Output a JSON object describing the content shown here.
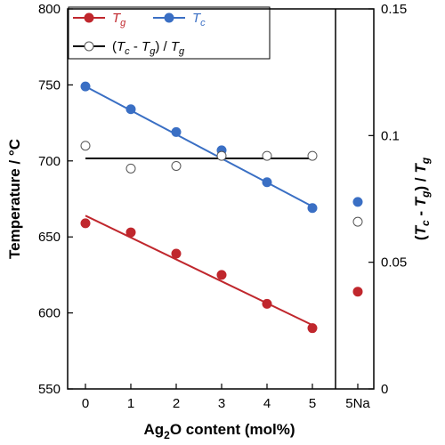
{
  "chart_data": {
    "type": "scatter",
    "x_categories": [
      "0",
      "1",
      "2",
      "3",
      "4",
      "5",
      "5Na"
    ],
    "xlabel": {
      "main": "Ag",
      "sub": "2",
      "rest": "O content (mol%)"
    },
    "ylabel_left": "Temperature / °C",
    "ylabel_right": "(T c - T g) / T g",
    "ylabel_right_parts": {
      "open": "(",
      "t1": "T",
      "s1": "c",
      "minus": " - ",
      "t2": "T",
      "s2": "g",
      "mid": ") / ",
      "t3": "T",
      "s3": "g"
    },
    "ylim_left": [
      550,
      800
    ],
    "yticks_left": [
      "550",
      "600",
      "650",
      "700",
      "750",
      "800"
    ],
    "ylim_right": [
      0,
      0.15
    ],
    "yticks_right": [
      "0",
      "0.05",
      "0.1",
      "0.15"
    ],
    "legend": [
      {
        "symbol": "T",
        "sub": "g",
        "color": "#c0272d",
        "marker": "filled"
      },
      {
        "symbol": "T",
        "sub": "c",
        "color": "#3a6fc4",
        "marker": "filled"
      },
      {
        "label_parts": [
          "(",
          "T",
          "c",
          " - ",
          "T",
          "g",
          ") / ",
          "T",
          "g"
        ],
        "color": "#000000",
        "marker": "open"
      }
    ],
    "series": [
      {
        "name": "Tg",
        "axis": "left",
        "color": "#c0272d",
        "x": [
          0,
          1,
          2,
          3,
          4,
          5
        ],
        "y": [
          659,
          653,
          639,
          625,
          606,
          590
        ],
        "fit": {
          "x": [
            0,
            5
          ],
          "y": [
            664,
            592
          ]
        }
      },
      {
        "name": "Tc",
        "axis": "left",
        "color": "#3a6fc4",
        "x": [
          0,
          1,
          2,
          3,
          4,
          5
        ],
        "y": [
          749,
          734,
          719,
          707,
          686,
          669
        ],
        "fit": {
          "x": [
            0,
            5
          ],
          "y": [
            749,
            670
          ]
        }
      },
      {
        "name": "(Tc - Tg) / Tg",
        "axis": "right",
        "color": "#000000",
        "marker": "open",
        "x": [
          0,
          1,
          2,
          3,
          4,
          5
        ],
        "y": [
          0.096,
          0.087,
          0.088,
          0.092,
          0.092,
          0.092
        ],
        "fit": {
          "x": [
            0,
            5
          ],
          "y": [
            0.091,
            0.091
          ]
        }
      }
    ],
    "na_sample": {
      "label": "5Na",
      "Tg": 614,
      "Tc": 673,
      "ratio": 0.066
    },
    "colors": {
      "Tg": "#c0272d",
      "Tc": "#3a6fc4",
      "ratio": "#000000"
    }
  }
}
